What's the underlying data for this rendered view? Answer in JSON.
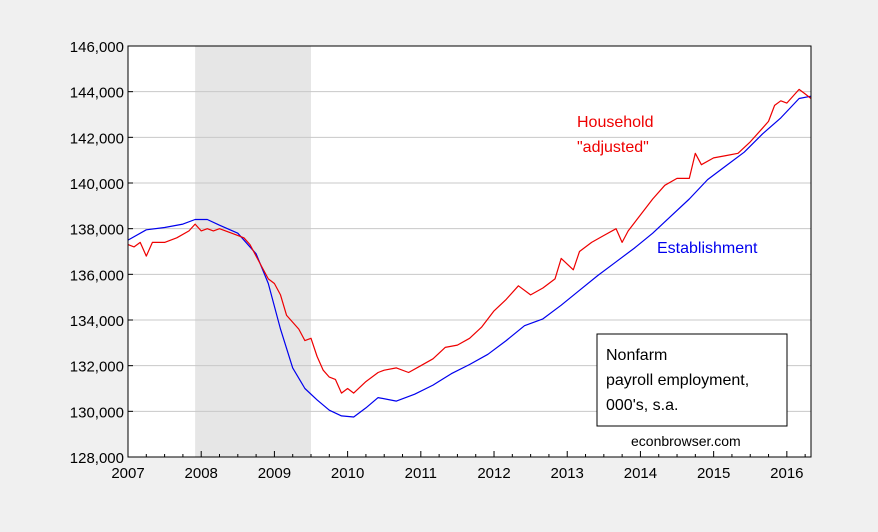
{
  "chart_data": {
    "type": "line",
    "title": "",
    "xlabel": "",
    "ylabel": "",
    "xlim": [
      2007.0,
      2016.33
    ],
    "ylim": [
      128000,
      146000
    ],
    "grid": true,
    "x_ticks": [
      "2007",
      "2008",
      "2009",
      "2010",
      "2011",
      "2012",
      "2013",
      "2014",
      "2015",
      "2016"
    ],
    "y_ticks": [
      "128,000",
      "130,000",
      "132,000",
      "134,000",
      "136,000",
      "138,000",
      "140,000",
      "142,000",
      "144,000",
      "146,000"
    ],
    "recession_shading": [
      2007.917,
      2009.5
    ],
    "series": [
      {
        "name": "Establishment",
        "color": "#0000ee",
        "points": [
          [
            2007.0,
            137500
          ],
          [
            2007.25,
            137950
          ],
          [
            2007.5,
            138050
          ],
          [
            2007.75,
            138200
          ],
          [
            2007.917,
            138400
          ],
          [
            2008.083,
            138400
          ],
          [
            2008.25,
            138150
          ],
          [
            2008.5,
            137800
          ],
          [
            2008.75,
            136900
          ],
          [
            2008.917,
            135600
          ],
          [
            2009.083,
            133600
          ],
          [
            2009.25,
            131900
          ],
          [
            2009.417,
            131000
          ],
          [
            2009.583,
            130500
          ],
          [
            2009.75,
            130050
          ],
          [
            2009.917,
            129800
          ],
          [
            2010.083,
            129750
          ],
          [
            2010.25,
            130150
          ],
          [
            2010.417,
            130600
          ],
          [
            2010.667,
            130450
          ],
          [
            2010.917,
            130750
          ],
          [
            2011.167,
            131150
          ],
          [
            2011.417,
            131650
          ],
          [
            2011.667,
            132050
          ],
          [
            2011.917,
            132500
          ],
          [
            2012.167,
            133100
          ],
          [
            2012.417,
            133750
          ],
          [
            2012.667,
            134050
          ],
          [
            2012.917,
            134650
          ],
          [
            2013.167,
            135300
          ],
          [
            2013.417,
            135950
          ],
          [
            2013.667,
            136550
          ],
          [
            2013.917,
            137150
          ],
          [
            2014.167,
            137800
          ],
          [
            2014.417,
            138550
          ],
          [
            2014.667,
            139300
          ],
          [
            2014.917,
            140150
          ],
          [
            2015.167,
            140750
          ],
          [
            2015.417,
            141350
          ],
          [
            2015.667,
            142150
          ],
          [
            2015.917,
            142850
          ],
          [
            2016.167,
            143700
          ],
          [
            2016.33,
            143800
          ]
        ]
      },
      {
        "name": "Household \"adjusted\"",
        "color": "#ee0000",
        "points": [
          [
            2007.0,
            137300
          ],
          [
            2007.083,
            137200
          ],
          [
            2007.167,
            137400
          ],
          [
            2007.25,
            136800
          ],
          [
            2007.333,
            137400
          ],
          [
            2007.5,
            137400
          ],
          [
            2007.667,
            137600
          ],
          [
            2007.833,
            137900
          ],
          [
            2007.917,
            138200
          ],
          [
            2008.0,
            137900
          ],
          [
            2008.083,
            138000
          ],
          [
            2008.167,
            137900
          ],
          [
            2008.25,
            138000
          ],
          [
            2008.417,
            137800
          ],
          [
            2008.583,
            137600
          ],
          [
            2008.667,
            137300
          ],
          [
            2008.75,
            136800
          ],
          [
            2008.917,
            135800
          ],
          [
            2009.0,
            135600
          ],
          [
            2009.083,
            135100
          ],
          [
            2009.167,
            134200
          ],
          [
            2009.333,
            133600
          ],
          [
            2009.417,
            133100
          ],
          [
            2009.5,
            133200
          ],
          [
            2009.583,
            132400
          ],
          [
            2009.667,
            131800
          ],
          [
            2009.75,
            131500
          ],
          [
            2009.833,
            131400
          ],
          [
            2009.917,
            130800
          ],
          [
            2010.0,
            131000
          ],
          [
            2010.083,
            130800
          ],
          [
            2010.25,
            131300
          ],
          [
            2010.417,
            131700
          ],
          [
            2010.5,
            131800
          ],
          [
            2010.667,
            131900
          ],
          [
            2010.833,
            131700
          ],
          [
            2011.0,
            132000
          ],
          [
            2011.167,
            132300
          ],
          [
            2011.333,
            132800
          ],
          [
            2011.5,
            132900
          ],
          [
            2011.667,
            133200
          ],
          [
            2011.833,
            133700
          ],
          [
            2012.0,
            134400
          ],
          [
            2012.167,
            134900
          ],
          [
            2012.333,
            135500
          ],
          [
            2012.5,
            135100
          ],
          [
            2012.667,
            135400
          ],
          [
            2012.833,
            135800
          ],
          [
            2012.917,
            136700
          ],
          [
            2013.083,
            136200
          ],
          [
            2013.167,
            137000
          ],
          [
            2013.333,
            137400
          ],
          [
            2013.5,
            137700
          ],
          [
            2013.667,
            138000
          ],
          [
            2013.75,
            137400
          ],
          [
            2013.833,
            137900
          ],
          [
            2014.0,
            138600
          ],
          [
            2014.167,
            139300
          ],
          [
            2014.333,
            139900
          ],
          [
            2014.5,
            140200
          ],
          [
            2014.667,
            140200
          ],
          [
            2014.75,
            141300
          ],
          [
            2014.833,
            140800
          ],
          [
            2015.0,
            141100
          ],
          [
            2015.167,
            141200
          ],
          [
            2015.333,
            141300
          ],
          [
            2015.5,
            141800
          ],
          [
            2015.667,
            142400
          ],
          [
            2015.75,
            142700
          ],
          [
            2015.833,
            143400
          ],
          [
            2015.917,
            143600
          ],
          [
            2016.0,
            143500
          ],
          [
            2016.167,
            144100
          ],
          [
            2016.25,
            143900
          ],
          [
            2016.33,
            143700
          ]
        ]
      }
    ],
    "annotations": {
      "household_label_line1": "Household",
      "household_label_line2": "\"adjusted\"",
      "establishment_label": "Establishment",
      "box_line1": "Nonfarm",
      "box_line2": "payroll employment,",
      "box_line3": "000's, s.a.",
      "credit": "econbrowser.com"
    },
    "colors": {
      "household": "#ee0000",
      "establishment": "#0000ee",
      "recession_fill": "#e6e6e6",
      "grid": "#c8c8c8"
    }
  }
}
